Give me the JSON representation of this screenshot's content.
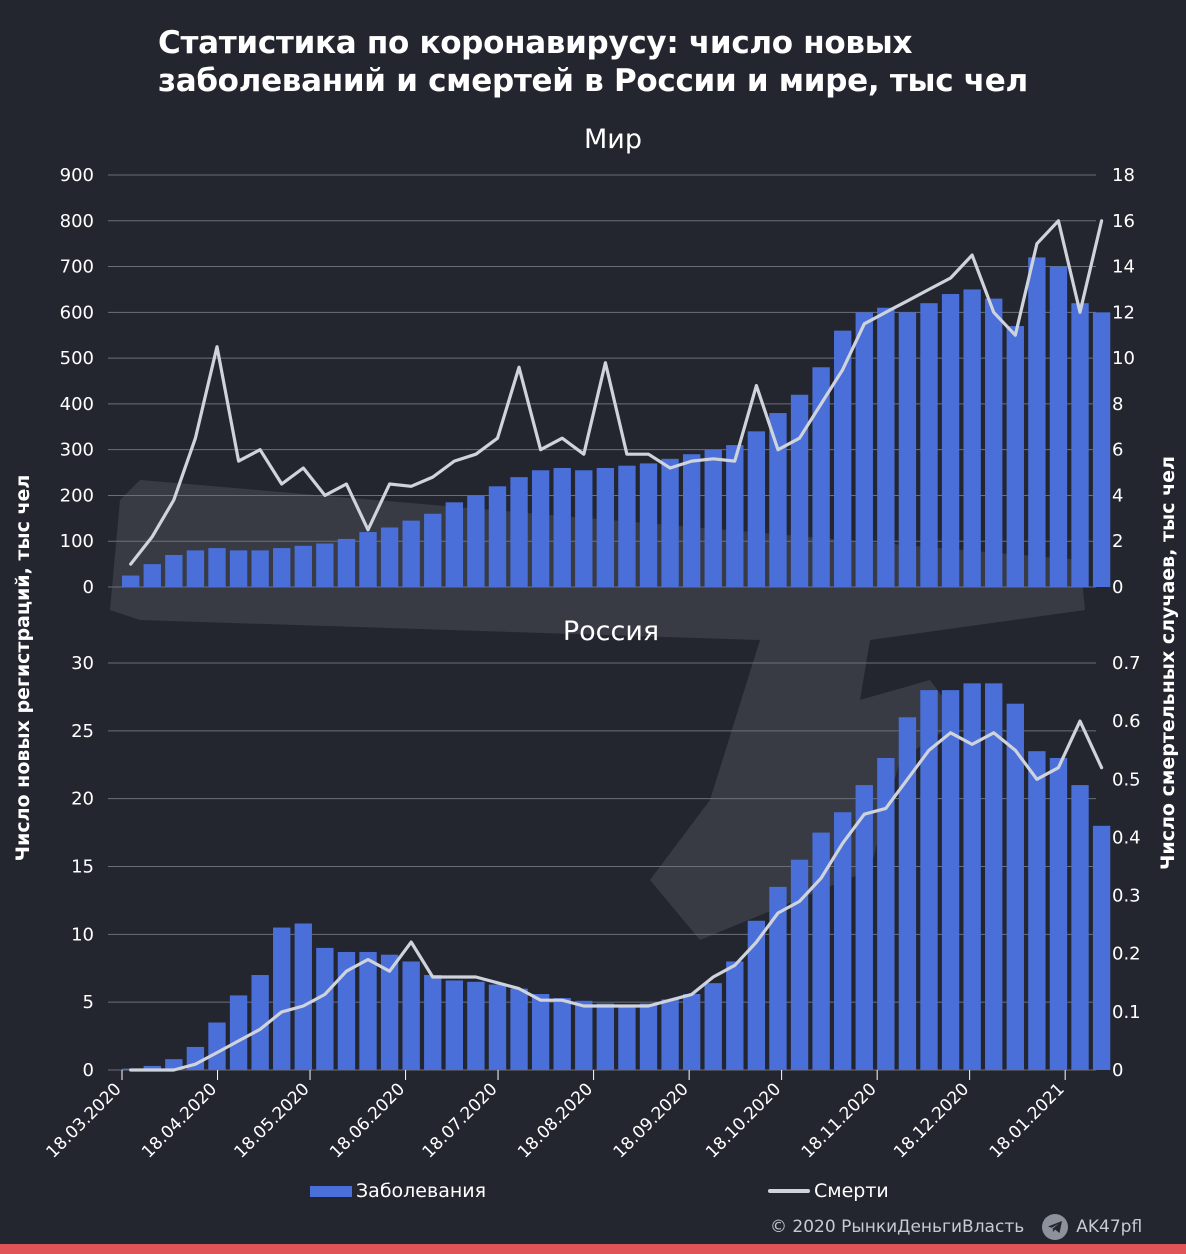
{
  "title_lines": [
    "Статистика по коронавирусу: число новых",
    "заболеваний и смертей в России и мире, тыс чел"
  ],
  "y_left_title": "Число новых регистраций, тыс чел",
  "y_right_title": "Число смертельных случаев, тыс чел",
  "legend": {
    "cases": "Заболевания",
    "deaths": "Смерти"
  },
  "footer": {
    "copyright": "© 2020  РынкиДеньгиВласть",
    "channel": "AK47pfl"
  },
  "colors": {
    "background": "#23262f",
    "bars": "#4a6fd8",
    "line": "#cfd3dc",
    "grid": "#6b6f78",
    "strip": "#e05356"
  },
  "x_ticks": [
    "18.03.2020",
    "18.04.2020",
    "18.05.2020",
    "18.06.2020",
    "18.07.2020",
    "18.08.2020",
    "18.09.2020",
    "18.10.2020",
    "18.11.2020",
    "18.12.2020",
    "18.01.2021"
  ],
  "chart_data": [
    {
      "title": "Мир",
      "type": "bar+line",
      "x_start": "18.03.2020",
      "x_end": "28.01.2021",
      "y_left_ticks": [
        "0",
        "100",
        "200",
        "300",
        "400",
        "500",
        "600",
        "700",
        "800",
        "900"
      ],
      "y_left_lim": [
        0,
        900
      ],
      "y_right_ticks": [
        "0",
        "2",
        "4",
        "6",
        "8",
        "10",
        "12",
        "14",
        "16",
        "18"
      ],
      "y_right_lim": [
        0,
        18
      ],
      "grid": true,
      "series": [
        {
          "name": "Заболевания",
          "type": "bar",
          "axis": "left",
          "sampling": "weekly",
          "dates": [
            "18.03.2020",
            "25.03.2020",
            "01.04.2020",
            "08.04.2020",
            "15.04.2020",
            "22.04.2020",
            "29.04.2020",
            "06.05.2020",
            "13.05.2020",
            "20.05.2020",
            "27.05.2020",
            "03.06.2020",
            "10.06.2020",
            "17.06.2020",
            "24.06.2020",
            "01.07.2020",
            "08.07.2020",
            "15.07.2020",
            "22.07.2020",
            "29.07.2020",
            "05.08.2020",
            "12.08.2020",
            "19.08.2020",
            "26.08.2020",
            "02.09.2020",
            "09.09.2020",
            "16.09.2020",
            "23.09.2020",
            "30.09.2020",
            "07.10.2020",
            "14.10.2020",
            "21.10.2020",
            "28.10.2020",
            "04.11.2020",
            "11.11.2020",
            "18.11.2020",
            "25.11.2020",
            "02.12.2020",
            "09.12.2020",
            "16.12.2020",
            "23.12.2020",
            "30.12.2020",
            "06.01.2021",
            "13.01.2021",
            "20.01.2021",
            "27.01.2021"
          ],
          "values": [
            25,
            50,
            70,
            80,
            85,
            80,
            80,
            85,
            90,
            95,
            105,
            120,
            130,
            145,
            160,
            185,
            200,
            220,
            240,
            255,
            260,
            255,
            260,
            265,
            270,
            280,
            290,
            300,
            310,
            340,
            380,
            420,
            480,
            560,
            600,
            610,
            600,
            620,
            640,
            650,
            630,
            570,
            720,
            700,
            620,
            600
          ]
        },
        {
          "name": "Смерти",
          "type": "line",
          "axis": "right",
          "sampling": "weekly",
          "dates": [
            "18.03.2020",
            "25.03.2020",
            "01.04.2020",
            "08.04.2020",
            "15.04.2020",
            "22.04.2020",
            "29.04.2020",
            "06.05.2020",
            "13.05.2020",
            "20.05.2020",
            "27.05.2020",
            "03.06.2020",
            "10.06.2020",
            "17.06.2020",
            "24.06.2020",
            "01.07.2020",
            "08.07.2020",
            "15.07.2020",
            "22.07.2020",
            "29.07.2020",
            "05.08.2020",
            "12.08.2020",
            "19.08.2020",
            "26.08.2020",
            "02.09.2020",
            "09.09.2020",
            "16.09.2020",
            "23.09.2020",
            "30.09.2020",
            "07.10.2020",
            "14.10.2020",
            "21.10.2020",
            "28.10.2020",
            "04.11.2020",
            "11.11.2020",
            "18.11.2020",
            "25.11.2020",
            "02.12.2020",
            "09.12.2020",
            "16.12.2020",
            "23.12.2020",
            "30.12.2020",
            "06.01.2021",
            "13.01.2021",
            "20.01.2021",
            "27.01.2021"
          ],
          "values": [
            1.0,
            2.2,
            3.8,
            6.5,
            10.5,
            5.5,
            6.0,
            4.5,
            5.2,
            4.0,
            4.5,
            2.5,
            4.5,
            4.4,
            4.8,
            5.5,
            5.8,
            6.5,
            9.6,
            6.0,
            6.5,
            5.8,
            9.8,
            5.8,
            5.8,
            5.2,
            5.5,
            5.6,
            5.5,
            8.8,
            6.0,
            6.5,
            8.0,
            9.5,
            11.5,
            12.0,
            12.5,
            13.0,
            13.5,
            14.5,
            12.0,
            11.0,
            15.0,
            16.0,
            12.0,
            16.0
          ]
        }
      ]
    },
    {
      "title": "Россия",
      "type": "bar+line",
      "x_start": "18.03.2020",
      "x_end": "28.01.2021",
      "y_left_ticks": [
        "0",
        "5",
        "10",
        "15",
        "20",
        "25",
        "30"
      ],
      "y_left_lim": [
        0,
        30
      ],
      "y_right_ticks": [
        "0",
        "0.1",
        "0.2",
        "0.3",
        "0.4",
        "0.5",
        "0.6",
        "0.7"
      ],
      "y_right_lim": [
        0,
        0.7
      ],
      "grid": true,
      "series": [
        {
          "name": "Заболевания",
          "type": "bar",
          "axis": "left",
          "sampling": "weekly",
          "dates": [
            "18.03.2020",
            "25.03.2020",
            "01.04.2020",
            "08.04.2020",
            "15.04.2020",
            "22.04.2020",
            "29.04.2020",
            "06.05.2020",
            "13.05.2020",
            "20.05.2020",
            "27.05.2020",
            "03.06.2020",
            "10.06.2020",
            "17.06.2020",
            "24.06.2020",
            "01.07.2020",
            "08.07.2020",
            "15.07.2020",
            "22.07.2020",
            "29.07.2020",
            "05.08.2020",
            "12.08.2020",
            "19.08.2020",
            "26.08.2020",
            "02.09.2020",
            "09.09.2020",
            "16.09.2020",
            "23.09.2020",
            "30.09.2020",
            "07.10.2020",
            "14.10.2020",
            "21.10.2020",
            "28.10.2020",
            "04.11.2020",
            "11.11.2020",
            "18.11.2020",
            "25.11.2020",
            "02.12.2020",
            "09.12.2020",
            "16.12.2020",
            "23.12.2020",
            "30.12.2020",
            "06.01.2021",
            "13.01.2021",
            "20.01.2021",
            "27.01.2021"
          ],
          "values": [
            0.1,
            0.3,
            0.8,
            1.7,
            3.5,
            5.5,
            7.0,
            10.5,
            10.8,
            9.0,
            8.7,
            8.7,
            8.5,
            8.0,
            7.0,
            6.6,
            6.5,
            6.3,
            6.0,
            5.6,
            5.3,
            5.1,
            4.9,
            4.8,
            4.9,
            5.2,
            5.6,
            6.4,
            8.0,
            11.0,
            13.5,
            15.5,
            17.5,
            19.0,
            21.0,
            23.0,
            26.0,
            28.0,
            28.0,
            28.5,
            28.5,
            27.0,
            23.5,
            23.0,
            21.0,
            18.0
          ]
        },
        {
          "name": "Смерти",
          "type": "line",
          "axis": "right",
          "sampling": "weekly",
          "dates": [
            "18.03.2020",
            "25.03.2020",
            "01.04.2020",
            "08.04.2020",
            "15.04.2020",
            "22.04.2020",
            "29.04.2020",
            "06.05.2020",
            "13.05.2020",
            "20.05.2020",
            "27.05.2020",
            "03.06.2020",
            "10.06.2020",
            "17.06.2020",
            "24.06.2020",
            "01.07.2020",
            "08.07.2020",
            "15.07.2020",
            "22.07.2020",
            "29.07.2020",
            "05.08.2020",
            "12.08.2020",
            "19.08.2020",
            "26.08.2020",
            "02.09.2020",
            "09.09.2020",
            "16.09.2020",
            "23.09.2020",
            "30.09.2020",
            "07.10.2020",
            "14.10.2020",
            "21.10.2020",
            "28.10.2020",
            "04.11.2020",
            "11.11.2020",
            "18.11.2020",
            "25.11.2020",
            "02.12.2020",
            "09.12.2020",
            "16.12.2020",
            "23.12.2020",
            "30.12.2020",
            "06.01.2021",
            "13.01.2021",
            "20.01.2021",
            "27.01.2021"
          ],
          "values": [
            0.0,
            0.0,
            0.0,
            0.01,
            0.03,
            0.05,
            0.07,
            0.1,
            0.11,
            0.13,
            0.17,
            0.19,
            0.17,
            0.22,
            0.16,
            0.16,
            0.16,
            0.15,
            0.14,
            0.12,
            0.12,
            0.11,
            0.11,
            0.11,
            0.11,
            0.12,
            0.13,
            0.16,
            0.18,
            0.22,
            0.27,
            0.29,
            0.33,
            0.39,
            0.44,
            0.45,
            0.5,
            0.55,
            0.58,
            0.56,
            0.58,
            0.55,
            0.5,
            0.52,
            0.6,
            0.52
          ]
        }
      ]
    }
  ]
}
